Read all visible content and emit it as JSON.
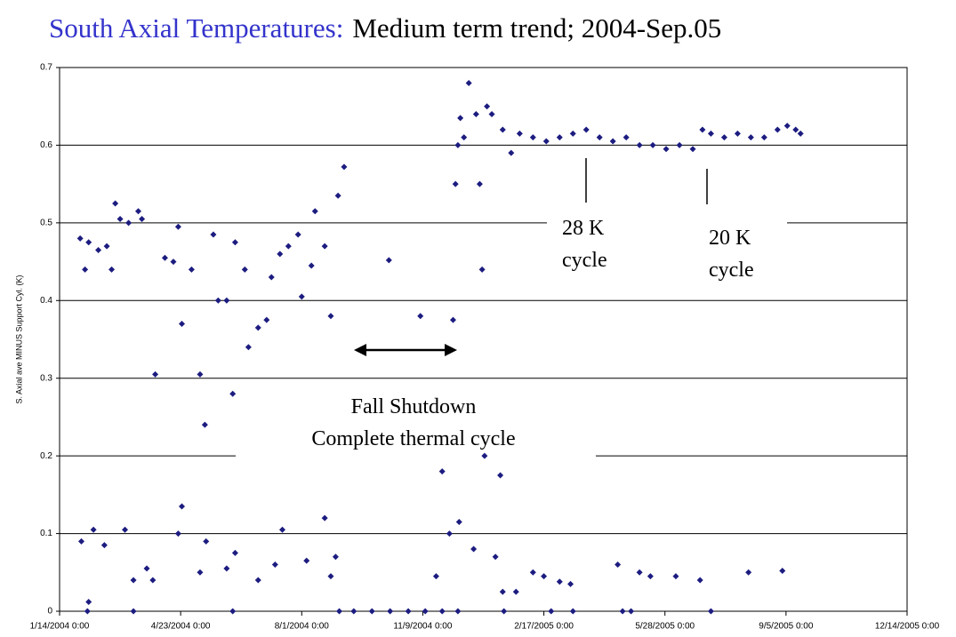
{
  "chart_data": {
    "type": "scatter",
    "title": "South Axial Temperatures:",
    "subtitle": "Medium term trend; 2004-Sep.05",
    "y_label": "S. Axial ave MINUS Support Cyl. (K)",
    "color": "#1c1c80",
    "grid": true,
    "xlim": [
      "2004-01-14",
      "2005-12-14"
    ],
    "xticks": [
      {
        "value": "2004-01-14",
        "label": "1/14/2004 0:00"
      },
      {
        "value": "2004-04-23",
        "label": "4/23/2004 0:00"
      },
      {
        "value": "2004-08-01",
        "label": "8/1/2004 0:00"
      },
      {
        "value": "2004-11-09",
        "label": "11/9/2004 0:00"
      },
      {
        "value": "2005-02-17",
        "label": "2/17/2005 0:00"
      },
      {
        "value": "2005-05-28",
        "label": "5/28/2005 0:00"
      },
      {
        "value": "2005-09-05",
        "label": "9/5/2005 0:00"
      },
      {
        "value": "2005-12-14",
        "label": "12/14/2005 0:00"
      }
    ],
    "ylim": [
      0,
      0.7
    ],
    "yticks": [
      0,
      0.1,
      0.2,
      0.3,
      0.4,
      0.5,
      0.6,
      0.7
    ],
    "annotations": [
      [
        "28 K",
        "cycle"
      ],
      [
        "20 K",
        "cycle"
      ],
      [
        "Fall Shutdown",
        "Complete thermal cycle"
      ]
    ],
    "x": [
      "2004-01-31",
      "2004-02-04",
      "2004-02-07",
      "2004-02-15",
      "2004-02-22",
      "2004-02-26",
      "2004-02-29",
      "2004-03-04",
      "2004-03-11",
      "2004-03-19",
      "2004-03-22",
      "2004-04-02",
      "2004-04-10",
      "2004-04-17",
      "2004-04-21",
      "2004-04-24",
      "2004-05-02",
      "2004-05-09",
      "2004-05-13",
      "2004-05-20",
      "2004-05-24",
      "2004-05-31",
      "2004-06-05",
      "2004-06-07",
      "2004-06-15",
      "2004-06-18",
      "2004-06-26",
      "2004-07-03",
      "2004-07-07",
      "2004-07-14",
      "2004-07-21",
      "2004-07-29",
      "2004-08-01",
      "2004-08-09",
      "2004-08-12",
      "2004-08-20",
      "2004-08-25",
      "2004-08-31",
      "2004-09-05",
      "2004-10-12",
      "2004-11-07",
      "2004-12-04",
      "2004-12-06",
      "2004-12-08",
      "2004-12-10",
      "2004-12-13",
      "2004-12-17",
      "2004-12-23",
      "2004-12-26",
      "2004-12-28",
      "2005-01-01",
      "2005-01-05",
      "2005-01-14",
      "2005-01-21",
      "2005-01-28",
      "2005-02-08",
      "2005-02-19",
      "2005-03-02",
      "2005-03-13",
      "2005-03-24",
      "2005-04-04",
      "2005-04-15",
      "2005-04-26",
      "2005-05-07",
      "2005-05-18",
      "2005-05-29",
      "2005-06-09",
      "2005-06-20",
      "2005-06-28",
      "2005-07-05",
      "2005-07-16",
      "2005-07-27",
      "2005-08-07",
      "2005-08-18",
      "2005-08-29",
      "2005-09-06",
      "2005-09-13",
      "2005-09-17",
      "2004-02-01",
      "2004-02-07",
      "2004-02-11",
      "2004-02-20",
      "2004-03-08",
      "2004-03-15",
      "2004-03-26",
      "2004-03-31",
      "2004-04-21",
      "2004-04-24",
      "2004-05-09",
      "2004-05-14",
      "2004-05-31",
      "2004-06-07",
      "2004-06-26",
      "2004-07-10",
      "2004-07-16",
      "2004-08-05",
      "2004-08-20",
      "2004-08-25",
      "2004-08-29",
      "2004-11-20",
      "2004-11-25",
      "2004-12-01",
      "2004-12-09",
      "2004-12-21",
      "2004-12-30",
      "2005-01-08",
      "2005-01-12",
      "2005-01-14",
      "2005-01-25",
      "2005-02-08",
      "2005-02-17",
      "2005-03-02",
      "2005-03-11",
      "2005-04-19",
      "2005-05-07",
      "2005-05-16",
      "2005-06-06",
      "2005-06-26",
      "2005-08-05",
      "2005-09-02",
      "2004-02-06",
      "2004-03-15",
      "2004-06-05",
      "2004-09-01",
      "2004-09-13",
      "2004-09-28",
      "2004-10-13",
      "2004-10-28",
      "2004-11-11",
      "2004-11-25",
      "2004-12-08",
      "2005-01-15",
      "2005-02-23",
      "2005-03-13",
      "2005-04-23",
      "2005-04-30",
      "2005-07-05"
    ],
    "values": [
      0.48,
      0.44,
      0.475,
      0.465,
      0.47,
      0.44,
      0.525,
      0.505,
      0.5,
      0.515,
      0.505,
      0.305,
      0.455,
      0.45,
      0.495,
      0.37,
      0.44,
      0.305,
      0.24,
      0.485,
      0.4,
      0.4,
      0.28,
      0.475,
      0.44,
      0.34,
      0.365,
      0.375,
      0.43,
      0.46,
      0.47,
      0.485,
      0.405,
      0.445,
      0.515,
      0.47,
      0.38,
      0.535,
      0.572,
      0.452,
      0.38,
      0.375,
      0.55,
      0.6,
      0.635,
      0.61,
      0.68,
      0.64,
      0.55,
      0.44,
      0.65,
      0.64,
      0.62,
      0.59,
      0.615,
      0.61,
      0.605,
      0.61,
      0.615,
      0.62,
      0.61,
      0.605,
      0.61,
      0.6,
      0.6,
      0.595,
      0.6,
      0.595,
      0.62,
      0.615,
      0.61,
      0.615,
      0.61,
      0.61,
      0.62,
      0.625,
      0.62,
      0.615,
      0.09,
      0.012,
      0.105,
      0.085,
      0.105,
      0.04,
      0.055,
      0.04,
      0.1,
      0.135,
      0.05,
      0.09,
      0.055,
      0.075,
      0.04,
      0.06,
      0.105,
      0.065,
      0.12,
      0.045,
      0.07,
      0.045,
      0.18,
      0.1,
      0.115,
      0.08,
      0.2,
      0.07,
      0.175,
      0.025,
      0.025,
      0.05,
      0.045,
      0.038,
      0.035,
      0.06,
      0.05,
      0.045,
      0.045,
      0.04,
      0.05,
      0.052,
      0,
      0,
      0,
      0,
      0,
      0,
      0,
      0,
      0,
      0,
      0,
      0,
      0,
      0,
      0,
      0,
      0
    ]
  }
}
